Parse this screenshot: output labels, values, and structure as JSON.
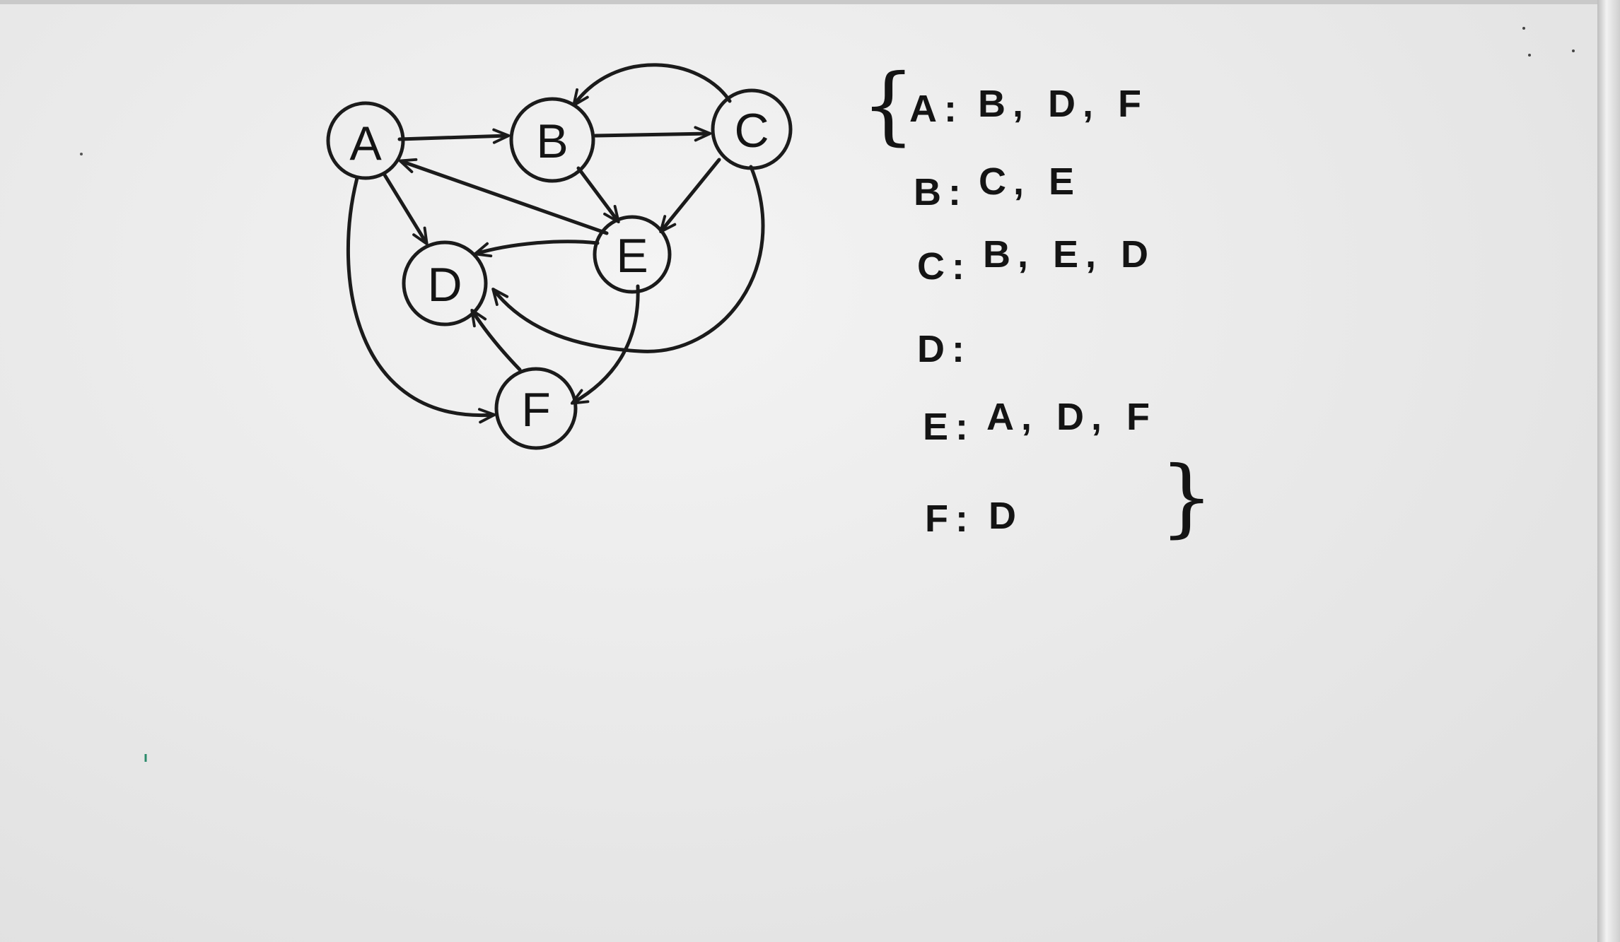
{
  "nodes": [
    {
      "id": "A"
    },
    {
      "id": "B"
    },
    {
      "id": "C"
    },
    {
      "id": "D"
    },
    {
      "id": "E"
    },
    {
      "id": "F"
    }
  ],
  "edges": [
    {
      "from": "A",
      "to": "B"
    },
    {
      "from": "A",
      "to": "D"
    },
    {
      "from": "A",
      "to": "F"
    },
    {
      "from": "B",
      "to": "C"
    },
    {
      "from": "B",
      "to": "E"
    },
    {
      "from": "C",
      "to": "B"
    },
    {
      "from": "C",
      "to": "E"
    },
    {
      "from": "C",
      "to": "D"
    },
    {
      "from": "E",
      "to": "A"
    },
    {
      "from": "E",
      "to": "D"
    },
    {
      "from": "E",
      "to": "F"
    },
    {
      "from": "F",
      "to": "D"
    }
  ],
  "adjacency": {
    "open_brace": "{",
    "close_brace": "}",
    "rows": [
      {
        "label": "A:",
        "neighbors": "B, D, F"
      },
      {
        "label": "B:",
        "neighbors": "C, E"
      },
      {
        "label": "C:",
        "neighbors": "B, E, D"
      },
      {
        "label": "D:",
        "neighbors": ""
      },
      {
        "label": "E:",
        "neighbors": "A, D, F"
      },
      {
        "label": "F:",
        "neighbors": "D"
      }
    ]
  }
}
